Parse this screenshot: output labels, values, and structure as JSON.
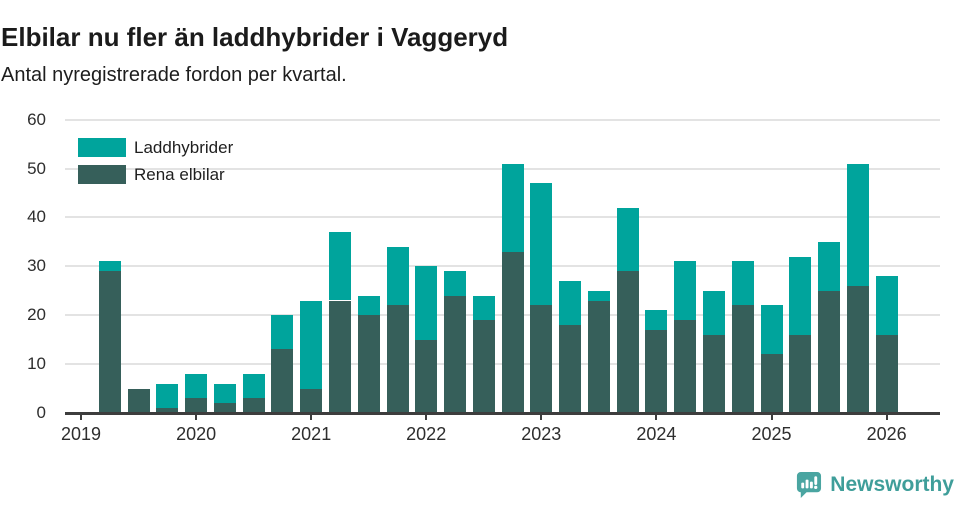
{
  "header": {
    "title": "Elbilar nu fler än laddhybrider i Vaggeryd",
    "subtitle": "Antal nyregistrerade fordon per kvartal."
  },
  "legend": [
    {
      "label": "Laddhybrider",
      "color": "#00a49c"
    },
    {
      "label": "Rena elbilar",
      "color": "#365f5a"
    }
  ],
  "footer": {
    "brand": "Newsworthy",
    "brand_color": "#3f9e9a",
    "badge_color": "#4aa5a1"
  },
  "chart_data": {
    "type": "bar",
    "stacked": true,
    "title": "Elbilar nu fler än laddhybrider i Vaggeryd",
    "subtitle": "Antal nyregistrerade fordon per kvartal.",
    "xlabel": "",
    "ylabel": "",
    "ylim": [
      0,
      60
    ],
    "yticks": [
      0,
      10,
      20,
      30,
      40,
      50,
      60
    ],
    "xticks": [
      "2019",
      "2020",
      "2021",
      "2022",
      "2023",
      "2024",
      "2025",
      "2026"
    ],
    "grid": true,
    "legend_position": "top-left",
    "x": [
      "2019Q2",
      "2019Q3",
      "2019Q4",
      "2020Q1",
      "2020Q2",
      "2020Q3",
      "2020Q4",
      "2021Q1",
      "2021Q2",
      "2021Q3",
      "2021Q4",
      "2022Q1",
      "2022Q2",
      "2022Q3",
      "2022Q4",
      "2023Q1",
      "2023Q2",
      "2023Q3",
      "2023Q4",
      "2024Q1",
      "2024Q2",
      "2024Q3",
      "2024Q4",
      "2025Q1",
      "2025Q2",
      "2025Q3",
      "2025Q4",
      "2026Q1"
    ],
    "series": [
      {
        "name": "Rena elbilar",
        "color": "#365f5a",
        "values": [
          29,
          5,
          1,
          3,
          2,
          3,
          13,
          5,
          23,
          20,
          22,
          15,
          24,
          19,
          33,
          22,
          18,
          23,
          29,
          17,
          19,
          16,
          22,
          12,
          16,
          25,
          26,
          16
        ]
      },
      {
        "name": "Laddhybrider",
        "color": "#00a49c",
        "values": [
          2,
          0,
          5,
          5,
          4,
          5,
          7,
          18,
          14,
          4,
          12,
          15,
          5,
          5,
          18,
          25,
          9,
          2,
          13,
          4,
          12,
          9,
          9,
          10,
          16,
          10,
          25,
          12
        ]
      }
    ],
    "totals": [
      31,
      5,
      6,
      8,
      6,
      8,
      20,
      23,
      37,
      24,
      34,
      30,
      29,
      24,
      51,
      47,
      27,
      25,
      42,
      21,
      31,
      25,
      31,
      22,
      32,
      35,
      51,
      28
    ]
  }
}
